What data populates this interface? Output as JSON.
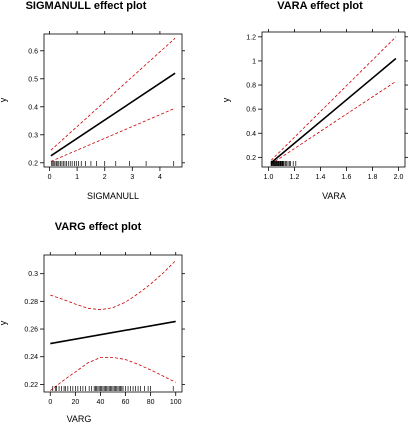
{
  "chart_data": [
    {
      "type": "line",
      "title": "SIGMANULL effect plot",
      "xlabel": "SIGMANULL",
      "ylabel": "y",
      "xlim": [
        -0.2,
        4.8
      ],
      "ylim": [
        0.185,
        0.66
      ],
      "xticks": [
        0,
        1,
        2,
        3,
        4
      ],
      "yticks": [
        0.2,
        0.3,
        0.4,
        0.5,
        0.6
      ],
      "xtick_labels": [
        "0",
        "1",
        "2",
        "3",
        "4"
      ],
      "ytick_labels": [
        "0.2",
        "0.3",
        "0.4",
        "0.5",
        "0.6"
      ],
      "grid": false,
      "series": [
        {
          "role": "fit",
          "color": "#000000",
          "x": [
            0.05,
            4.55
          ],
          "y": [
            0.225,
            0.52
          ]
        },
        {
          "role": "upper",
          "color": "#cc0000",
          "x": [
            0.05,
            4.55
          ],
          "y": [
            0.245,
            0.645
          ]
        },
        {
          "role": "lower",
          "color": "#cc0000",
          "x": [
            0.05,
            4.55
          ],
          "y": [
            0.205,
            0.395
          ]
        }
      ],
      "rug": [
        0.08,
        0.12,
        0.16,
        0.2,
        0.25,
        0.3,
        0.34,
        0.4,
        0.45,
        0.5,
        0.56,
        0.62,
        0.68,
        0.75,
        0.82,
        0.9,
        0.97,
        1.05,
        1.15,
        1.3,
        1.5,
        1.7,
        2.0,
        2.4,
        2.9,
        3.5,
        4.5
      ]
    },
    {
      "type": "line",
      "title": "VARA effect plot",
      "xlabel": "VARA",
      "ylabel": "y",
      "xlim": [
        0.95,
        2.05
      ],
      "ylim": [
        0.12,
        1.24
      ],
      "xticks": [
        1.0,
        1.2,
        1.4,
        1.6,
        1.8,
        2.0
      ],
      "yticks": [
        0.2,
        0.4,
        0.6,
        0.8,
        1.0,
        1.2
      ],
      "xtick_labels": [
        "1.0",
        "1.2",
        "1.4",
        "1.6",
        "1.8",
        "2.0"
      ],
      "ytick_labels": [
        "0.2",
        "0.4",
        "0.6",
        "0.8",
        "1",
        "1.2"
      ],
      "grid": false,
      "series": [
        {
          "role": "fit",
          "color": "#000000",
          "x": [
            1.02,
            1.98
          ],
          "y": [
            0.155,
            1.02
          ]
        },
        {
          "role": "upper",
          "color": "#cc0000",
          "x": [
            1.02,
            1.98
          ],
          "y": [
            0.175,
            1.2
          ]
        },
        {
          "role": "lower",
          "color": "#cc0000",
          "x": [
            1.02,
            1.98
          ],
          "y": [
            0.145,
            0.83
          ]
        }
      ],
      "rug": [
        1.02,
        1.025,
        1.03,
        1.035,
        1.04,
        1.045,
        1.05,
        1.055,
        1.06,
        1.065,
        1.07,
        1.075,
        1.08,
        1.085,
        1.09,
        1.095,
        1.1,
        1.105,
        1.11,
        1.115,
        1.12,
        1.13,
        1.14,
        1.15,
        1.16,
        1.17,
        1.19,
        1.21
      ]
    },
    {
      "type": "line",
      "title": "VARG effect plot",
      "xlabel": "VARG",
      "ylabel": "y",
      "xlim": [
        -5,
        105
      ],
      "ylim": [
        0.2145,
        0.3135
      ],
      "xticks": [
        0,
        20,
        40,
        60,
        80,
        100
      ],
      "yticks": [
        0.22,
        0.24,
        0.26,
        0.28,
        0.3
      ],
      "xtick_labels": [
        "0",
        "20",
        "40",
        "60",
        "80",
        "100"
      ],
      "ytick_labels": [
        "0.22",
        "0.24",
        "0.26",
        "0.28",
        "0.3"
      ],
      "grid": false,
      "series": [
        {
          "role": "fit",
          "color": "#000000",
          "x": [
            0,
            100
          ],
          "y": [
            0.2495,
            0.2655
          ]
        },
        {
          "role": "upper",
          "color": "#cc0000",
          "x": [
            0,
            10,
            20,
            30,
            40,
            50,
            60,
            70,
            80,
            90,
            100
          ],
          "y": [
            0.2845,
            0.2815,
            0.278,
            0.275,
            0.274,
            0.2755,
            0.2795,
            0.2855,
            0.2925,
            0.3005,
            0.3095
          ]
        },
        {
          "role": "lower",
          "color": "#cc0000",
          "x": [
            0,
            10,
            20,
            30,
            40,
            50,
            60,
            70,
            80,
            90,
            100
          ],
          "y": [
            0.2155,
            0.2225,
            0.229,
            0.2355,
            0.2395,
            0.2395,
            0.238,
            0.2345,
            0.2305,
            0.226,
            0.2215
          ]
        },
        {
          "role": "fit-left-cap",
          "color": "#000000",
          "x": [
            0,
            0
          ],
          "y": [
            0.2495,
            0.2495
          ]
        }
      ],
      "rug": [
        2,
        4,
        5,
        7,
        9,
        11,
        12,
        14,
        16,
        18,
        20,
        22,
        24,
        26,
        28,
        31,
        33,
        35,
        36,
        37,
        38,
        39,
        40,
        41,
        42,
        43,
        44,
        45,
        46,
        47,
        48,
        49,
        50,
        51,
        52,
        53,
        54,
        55,
        56,
        57,
        58,
        60,
        62,
        64,
        66,
        68,
        70,
        72,
        75,
        78,
        80,
        98
      ]
    }
  ]
}
